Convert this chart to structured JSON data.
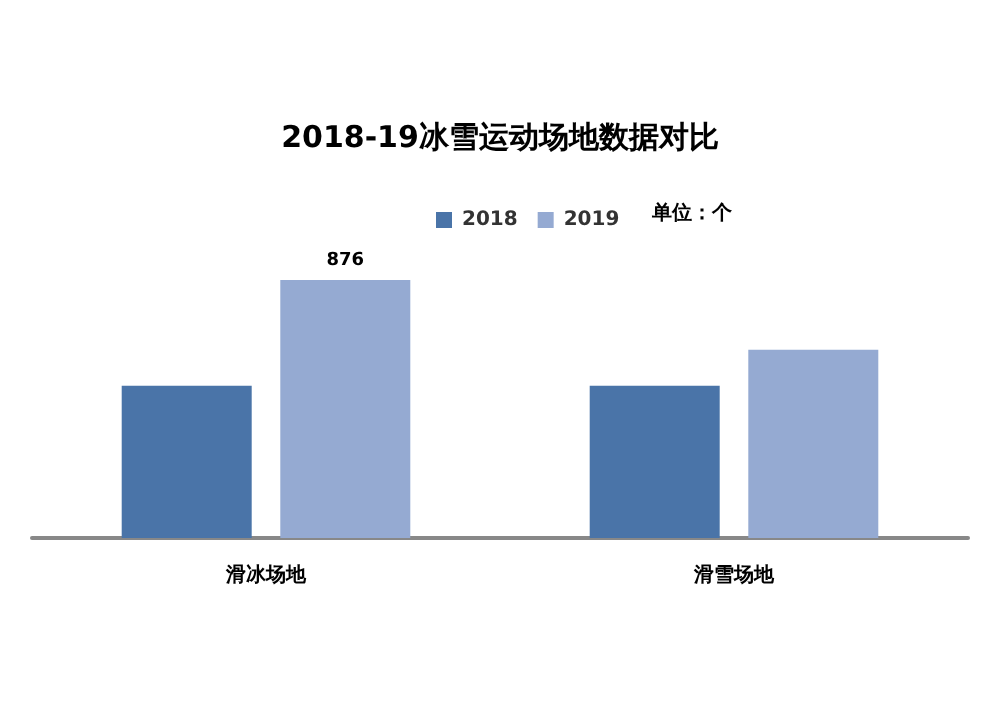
{
  "chart_data": {
    "type": "bar",
    "title": "2018-19冰雪运动场地数据对比",
    "categories": [
      "滑冰场地",
      "滑雪场地"
    ],
    "series": [
      {
        "name": "2018",
        "color": "#4a74a8",
        "values": [
          517,
          517
        ]
      },
      {
        "name": "2019",
        "color": "#95aad2",
        "values": [
          876,
          639
        ],
        "value_labels": [
          "876",
          null
        ]
      }
    ],
    "legend": "top",
    "annotations": [
      "单位：个"
    ]
  }
}
